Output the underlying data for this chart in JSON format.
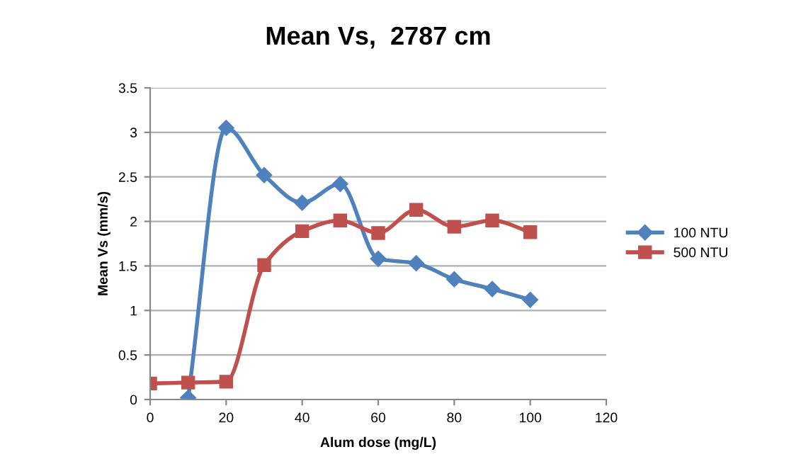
{
  "chart_data": {
    "type": "line",
    "title": "Mean Vs,  2787 cm",
    "xlabel": "Alum dose (mg/L)",
    "ylabel": "Mean Vs (mm/s)",
    "xlim": [
      0,
      120
    ],
    "xticks": [
      0,
      20,
      40,
      60,
      80,
      100,
      120
    ],
    "ylim": [
      0,
      3.5
    ],
    "yticks": [
      0,
      0.5,
      1,
      1.5,
      2,
      2.5,
      3,
      3.5
    ],
    "grid": "y",
    "legend": "right",
    "series": [
      {
        "name": "100 NTU",
        "color": "#4f81bd",
        "marker": "diamond",
        "x": [
          10,
          20,
          30,
          40,
          50,
          60,
          70,
          80,
          90,
          100
        ],
        "values": [
          0.02,
          3.05,
          2.52,
          2.21,
          2.42,
          1.58,
          1.53,
          1.35,
          1.24,
          1.12
        ]
      },
      {
        "name": "500 NTU",
        "color": "#c0504d",
        "marker": "square",
        "x": [
          0,
          10,
          20,
          30,
          40,
          50,
          60,
          70,
          80,
          90,
          100
        ],
        "values": [
          0.18,
          0.19,
          0.2,
          1.51,
          1.89,
          2.01,
          1.87,
          2.13,
          1.94,
          2.01,
          1.88
        ]
      }
    ]
  }
}
